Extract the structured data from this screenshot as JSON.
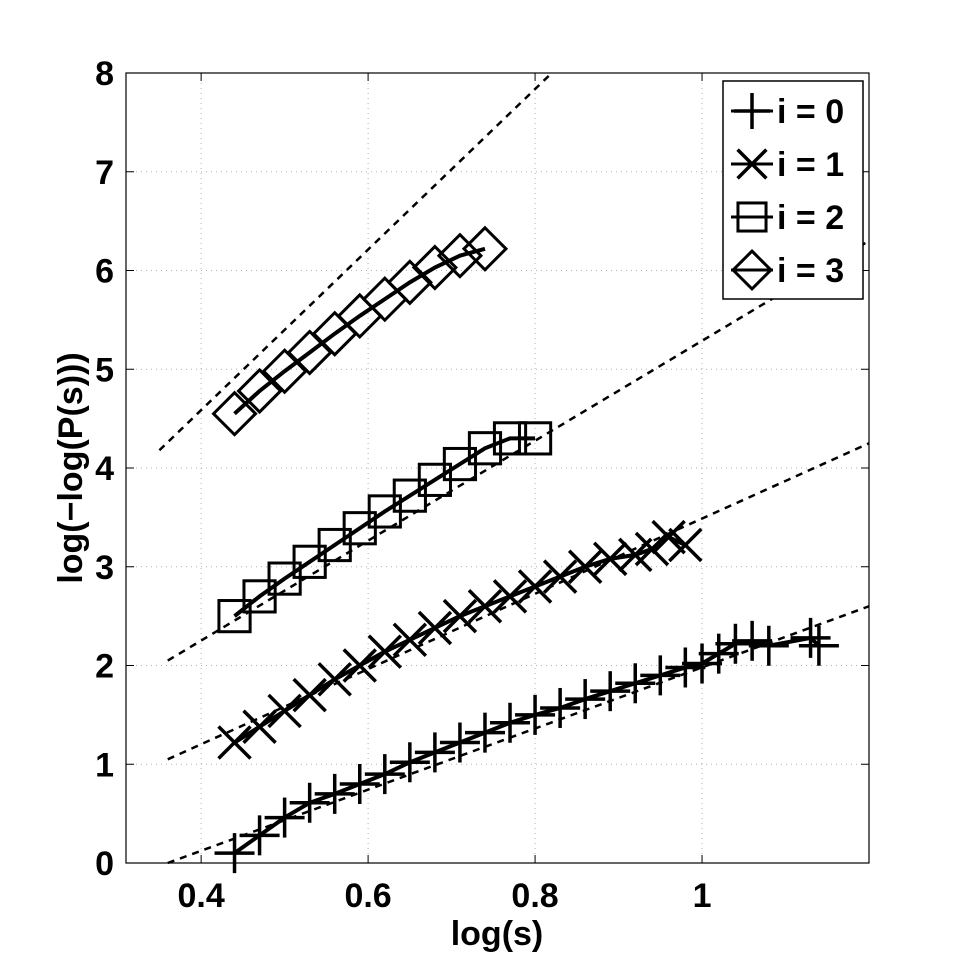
{
  "chart_data": {
    "type": "line",
    "title": "",
    "xlabel": "log(s)",
    "ylabel": "log(−log(P(s)))",
    "xlim": [
      0.31,
      1.2
    ],
    "ylim": [
      0,
      8
    ],
    "xticks": [
      0.4,
      0.6,
      0.8,
      1
    ],
    "xtick_labels": [
      "0.4",
      "0.6",
      "0.8",
      "1"
    ],
    "yticks": [
      0,
      1,
      2,
      3,
      4,
      5,
      6,
      7,
      8
    ],
    "ytick_labels": [
      "0",
      "1",
      "2",
      "3",
      "4",
      "5",
      "6",
      "7",
      "8"
    ],
    "grid": true,
    "legend_position": "top-right",
    "colors": {
      "line": "#000000",
      "grid": "#b0b0b0",
      "background": "#ffffff"
    },
    "series": [
      {
        "name": "i = 0",
        "marker": "plus",
        "x": [
          0.44,
          0.47,
          0.5,
          0.53,
          0.56,
          0.59,
          0.62,
          0.65,
          0.68,
          0.71,
          0.74,
          0.77,
          0.8,
          0.83,
          0.86,
          0.89,
          0.92,
          0.95,
          0.98,
          1.0,
          1.02,
          1.04,
          1.06,
          1.08,
          1.13,
          1.14
        ],
        "y": [
          0.1,
          0.28,
          0.46,
          0.61,
          0.7,
          0.8,
          0.9,
          1.02,
          1.12,
          1.22,
          1.32,
          1.42,
          1.5,
          1.57,
          1.66,
          1.74,
          1.82,
          1.9,
          1.98,
          2.02,
          2.12,
          2.22,
          2.25,
          2.2,
          2.28,
          2.2
        ]
      },
      {
        "name": "i = 1",
        "marker": "x",
        "x": [
          0.44,
          0.47,
          0.5,
          0.53,
          0.56,
          0.59,
          0.62,
          0.65,
          0.68,
          0.71,
          0.74,
          0.77,
          0.8,
          0.83,
          0.86,
          0.89,
          0.92,
          0.94,
          0.96,
          0.98
        ],
        "y": [
          1.22,
          1.38,
          1.54,
          1.7,
          1.86,
          2.0,
          2.14,
          2.26,
          2.38,
          2.5,
          2.6,
          2.7,
          2.8,
          2.9,
          3.0,
          3.08,
          3.12,
          3.18,
          3.3,
          3.22
        ]
      },
      {
        "name": "i = 2",
        "marker": "square",
        "x": [
          0.44,
          0.47,
          0.5,
          0.53,
          0.56,
          0.59,
          0.62,
          0.65,
          0.68,
          0.71,
          0.74,
          0.77,
          0.8
        ],
        "y": [
          2.5,
          2.7,
          2.88,
          3.05,
          3.22,
          3.39,
          3.56,
          3.72,
          3.88,
          4.04,
          4.2,
          4.3,
          4.3
        ]
      },
      {
        "name": "i = 3",
        "marker": "diamond",
        "x": [
          0.44,
          0.47,
          0.5,
          0.53,
          0.56,
          0.59,
          0.62,
          0.65,
          0.68,
          0.71,
          0.74
        ],
        "y": [
          4.55,
          4.78,
          4.98,
          5.17,
          5.36,
          5.54,
          5.71,
          5.88,
          6.03,
          6.15,
          6.22
        ]
      }
    ],
    "fit_curves": [
      {
        "style": "dashed",
        "x": [
          0.36,
          1.2
        ],
        "y": [
          0.0,
          2.6
        ]
      },
      {
        "style": "dashed",
        "x": [
          0.36,
          1.2
        ],
        "y": [
          1.05,
          4.25
        ]
      },
      {
        "style": "dashed",
        "x": [
          0.36,
          1.2
        ],
        "y": [
          2.05,
          6.3
        ]
      },
      {
        "style": "dashed",
        "x": [
          0.35,
          0.82
        ],
        "y": [
          4.18,
          8.0
        ]
      }
    ]
  }
}
